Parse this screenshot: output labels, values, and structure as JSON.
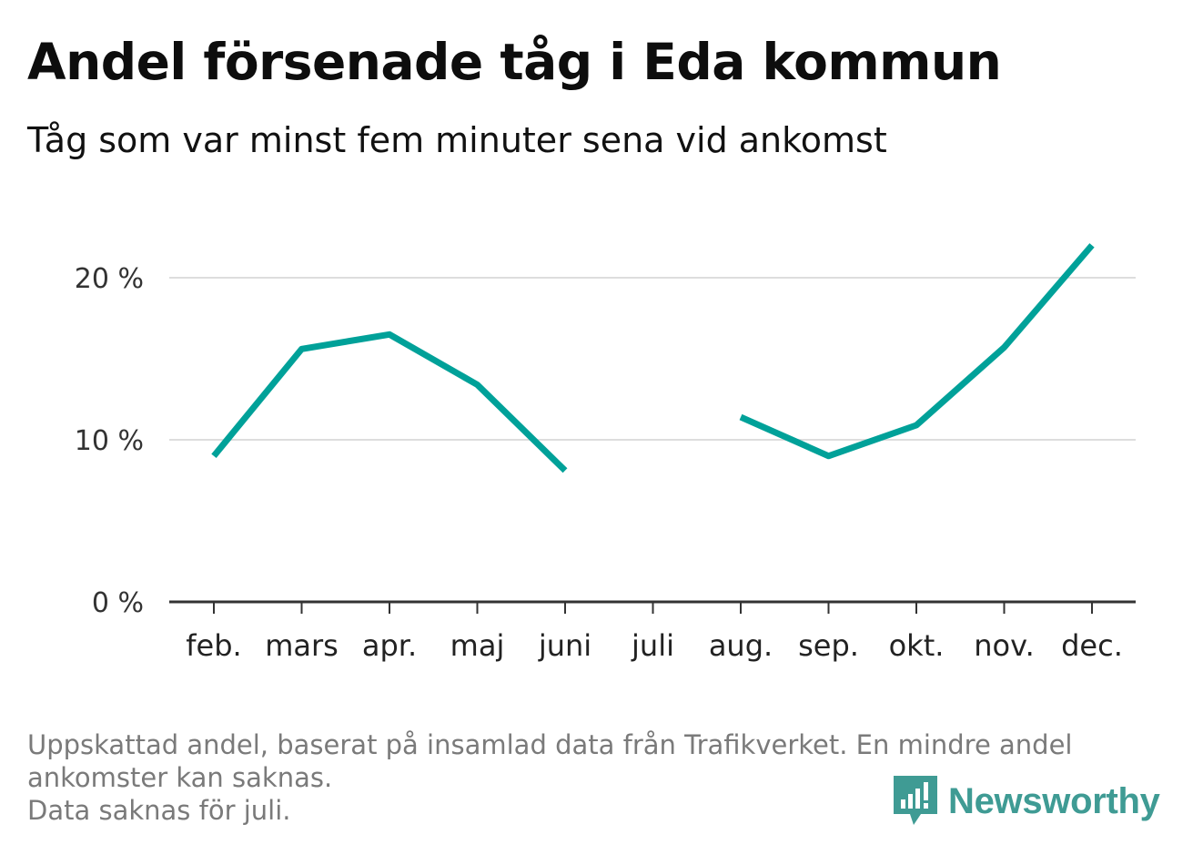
{
  "title": "Andel försenade tåg i Eda kommun",
  "subtitle": "Tåg som var minst fem minuter sena vid ankomst",
  "footnote": {
    "line1": "Uppskattad andel, baserat på insamlad data från Trafikverket. En mindre andel",
    "line2": "ankomster kan saknas.",
    "line3": "Data saknas för juli."
  },
  "brand": {
    "name": "Newsworthy",
    "icon": "newsworthy-logo-icon",
    "color": "#3f9b94"
  },
  "chart_data": {
    "type": "line",
    "categories": [
      "feb.",
      "mars",
      "apr.",
      "maj",
      "juni",
      "juli",
      "aug.",
      "sep.",
      "okt.",
      "nov.",
      "dec."
    ],
    "series": [
      {
        "values": [
          9.0,
          15.6,
          16.5,
          13.4,
          8.1,
          null,
          11.4,
          9.0,
          10.9,
          15.7,
          22.0
        ],
        "color": "#00a199"
      }
    ],
    "y_ticks": [
      0,
      10,
      20
    ],
    "y_tick_labels": [
      "0 %",
      "10 %",
      "20 %"
    ],
    "ylim": [
      0,
      24
    ],
    "grid": true,
    "xlabel": "",
    "ylabel": ""
  }
}
